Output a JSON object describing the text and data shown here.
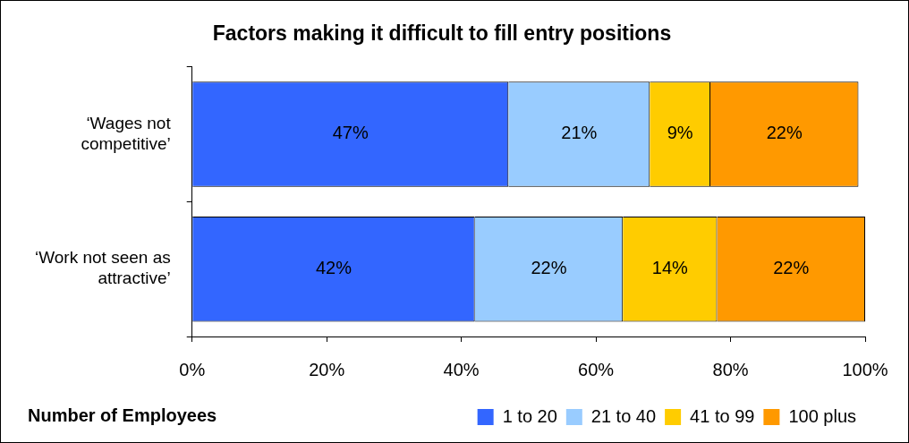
{
  "chart_data": {
    "type": "bar",
    "orientation": "horizontal",
    "stacked": true,
    "title": "Factors making it difficult to fill entry positions",
    "legend_title": "Number of Employees",
    "legend": "bottom",
    "grid": false,
    "categories": [
      "‘Wages not competitive’",
      "‘Work not seen as attractive’"
    ],
    "xlim": [
      0,
      100
    ],
    "xticks": [
      {
        "value": 0,
        "label": "0%"
      },
      {
        "value": 20,
        "label": "20%"
      },
      {
        "value": 40,
        "label": "40%"
      },
      {
        "value": 60,
        "label": "60%"
      },
      {
        "value": 80,
        "label": "80%"
      },
      {
        "value": 100,
        "label": "100%"
      }
    ],
    "series": [
      {
        "name": "1 to 20",
        "color": "#3366ff",
        "values": [
          47,
          42
        ],
        "value_labels": [
          "47%",
          "42%"
        ]
      },
      {
        "name": "21 to 40",
        "color": "#99ccff",
        "values": [
          21,
          22
        ],
        "value_labels": [
          "21%",
          "22%"
        ]
      },
      {
        "name": "41 to 99",
        "color": "#ffcc00",
        "values": [
          9,
          14
        ],
        "value_labels": [
          "9%",
          "14%"
        ]
      },
      {
        "name": "100 plus",
        "color": "#ff9900",
        "values": [
          22,
          22
        ],
        "value_labels": [
          "22%",
          "22%"
        ]
      }
    ]
  }
}
